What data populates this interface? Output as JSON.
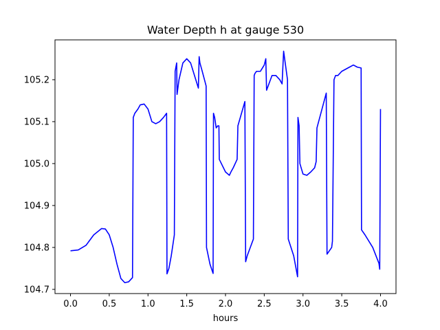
{
  "chart_data": {
    "type": "line",
    "title": "Water Depth h at gauge 530",
    "xlabel": "hours",
    "ylabel": "",
    "xlim": [
      -0.2,
      4.2
    ],
    "ylim": [
      104.69,
      105.295
    ],
    "xticks": [
      0.0,
      0.5,
      1.0,
      1.5,
      2.0,
      2.5,
      3.0,
      3.5,
      4.0
    ],
    "xtick_labels": [
      "0.0",
      "0.5",
      "1.0",
      "1.5",
      "2.0",
      "2.5",
      "3.0",
      "3.5",
      "4.0"
    ],
    "yticks": [
      104.7,
      104.8,
      104.9,
      105.0,
      105.1,
      105.2
    ],
    "ytick_labels": [
      "104.7",
      "104.8",
      "104.9",
      "105.0",
      "105.1",
      "105.2"
    ],
    "grid": false,
    "series": [
      {
        "color": "#0000ff",
        "x": [
          0.0,
          0.1,
          0.2,
          0.3,
          0.4,
          0.45,
          0.5,
          0.55,
          0.6,
          0.65,
          0.7,
          0.75,
          0.8,
          0.81,
          0.83,
          0.87,
          0.9,
          0.95,
          1.0,
          1.05,
          1.1,
          1.15,
          1.2,
          1.24,
          1.245,
          1.27,
          1.3,
          1.34,
          1.35,
          1.37,
          1.375,
          1.4,
          1.45,
          1.5,
          1.55,
          1.6,
          1.65,
          1.66,
          1.67,
          1.7,
          1.75,
          1.755,
          1.8,
          1.84,
          1.845,
          1.86,
          1.88,
          1.9,
          1.915,
          1.92,
          2.0,
          2.05,
          2.07,
          2.1,
          2.15,
          2.16,
          2.25,
          2.26,
          2.28,
          2.32,
          2.36,
          2.37,
          2.38,
          2.4,
          2.45,
          2.5,
          2.52,
          2.53,
          2.6,
          2.65,
          2.7,
          2.73,
          2.75,
          2.8,
          2.81,
          2.88,
          2.93,
          2.935,
          2.95,
          2.96,
          3.0,
          3.05,
          3.1,
          3.15,
          3.17,
          3.18,
          3.3,
          3.31,
          3.37,
          3.38,
          3.4,
          3.42,
          3.45,
          3.5,
          3.6,
          3.65,
          3.7,
          3.75,
          3.755,
          3.8,
          3.9,
          3.98,
          3.99,
          4.0
        ],
        "y": [
          104.792,
          104.794,
          104.805,
          104.83,
          104.845,
          104.844,
          104.83,
          104.8,
          104.76,
          104.726,
          104.716,
          104.718,
          104.728,
          105.11,
          105.12,
          105.13,
          105.14,
          105.142,
          105.13,
          105.1,
          105.095,
          105.1,
          105.11,
          105.12,
          104.737,
          104.75,
          104.78,
          104.83,
          105.22,
          105.24,
          105.165,
          105.2,
          105.24,
          105.25,
          105.24,
          105.21,
          105.18,
          105.255,
          105.24,
          105.22,
          105.185,
          104.8,
          104.76,
          104.738,
          105.12,
          105.11,
          105.085,
          105.09,
          105.09,
          105.01,
          104.98,
          104.972,
          104.98,
          104.99,
          105.01,
          105.09,
          105.148,
          104.766,
          104.78,
          104.8,
          104.82,
          105.21,
          105.215,
          105.22,
          105.22,
          105.235,
          105.25,
          105.175,
          105.21,
          105.21,
          105.2,
          105.19,
          105.268,
          105.2,
          104.82,
          104.78,
          104.73,
          105.11,
          105.09,
          105.0,
          104.975,
          104.972,
          104.98,
          104.99,
          105.005,
          105.085,
          105.168,
          104.784,
          104.8,
          104.815,
          105.2,
          105.21,
          105.21,
          105.22,
          105.23,
          105.235,
          105.23,
          105.228,
          104.842,
          104.83,
          104.8,
          104.762,
          104.748,
          105.13
        ]
      }
    ]
  }
}
